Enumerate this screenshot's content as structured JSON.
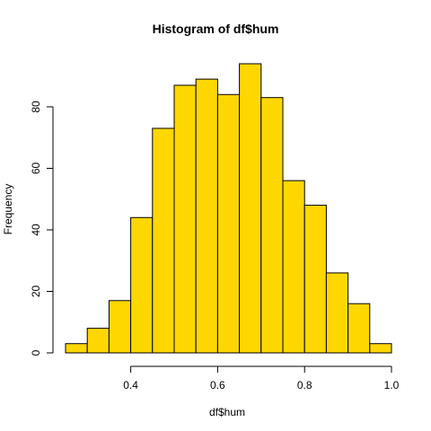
{
  "chart_data": {
    "type": "bar",
    "title": "Histogram of df$hum",
    "xlabel": "df$hum",
    "ylabel": "Frequency",
    "bins": [
      {
        "start": 0.25,
        "end": 0.3,
        "count": 3
      },
      {
        "start": 0.3,
        "end": 0.35,
        "count": 8
      },
      {
        "start": 0.35,
        "end": 0.4,
        "count": 17
      },
      {
        "start": 0.4,
        "end": 0.45,
        "count": 44
      },
      {
        "start": 0.45,
        "end": 0.5,
        "count": 73
      },
      {
        "start": 0.5,
        "end": 0.55,
        "count": 87
      },
      {
        "start": 0.55,
        "end": 0.6,
        "count": 89
      },
      {
        "start": 0.6,
        "end": 0.65,
        "count": 84
      },
      {
        "start": 0.65,
        "end": 0.7,
        "count": 94
      },
      {
        "start": 0.7,
        "end": 0.75,
        "count": 83
      },
      {
        "start": 0.75,
        "end": 0.8,
        "count": 56
      },
      {
        "start": 0.8,
        "end": 0.85,
        "count": 48
      },
      {
        "start": 0.85,
        "end": 0.9,
        "count": 26
      },
      {
        "start": 0.9,
        "end": 0.95,
        "count": 16
      },
      {
        "start": 0.95,
        "end": 1.0,
        "count": 3
      }
    ],
    "xlim": [
      0.25,
      1.0
    ],
    "ylim": [
      0,
      94
    ],
    "x_ticks": [
      0.4,
      0.6,
      0.8,
      1.0
    ],
    "x_tick_labels": [
      "0.4",
      "0.6",
      "0.8",
      "1.0"
    ],
    "y_ticks": [
      0,
      20,
      40,
      60,
      80
    ],
    "y_tick_labels": [
      "0",
      "20",
      "40",
      "60",
      "80"
    ],
    "bar_fill": "#FFD700",
    "bar_stroke": "#000000",
    "grid": false,
    "legend": "none"
  }
}
